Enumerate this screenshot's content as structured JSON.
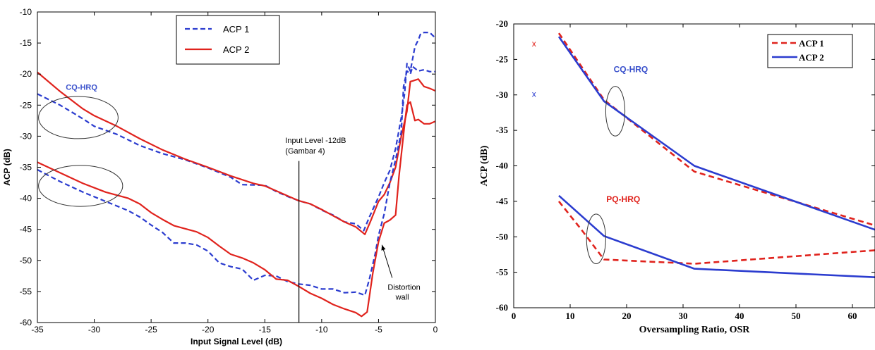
{
  "chart_data": [
    {
      "type": "line",
      "xlabel": "Input Signal Level (dB)",
      "ylabel": "ACP (dB)",
      "xlim": [
        -35,
        0
      ],
      "ylim": [
        -60,
        -10
      ],
      "xticks": [
        -35,
        -30,
        -25,
        -20,
        -15,
        -10,
        -5,
        0
      ],
      "yticks": [
        -60,
        -55,
        -50,
        -45,
        -40,
        -35,
        -30,
        -25,
        -20,
        -15,
        -10
      ],
      "grid": false,
      "legend": {
        "position": "top-center",
        "entries": [
          "ACP 1",
          "ACP 2"
        ]
      },
      "series": [
        {
          "name": "ACP 1",
          "group": "CQ-HRQ",
          "color": "#2b3ccf",
          "style": "dashed",
          "points": [
            [
              -35,
              -23.2
            ],
            [
              -33,
              -25
            ],
            [
              -31,
              -27.2
            ],
            [
              -30,
              -28.4
            ],
            [
              -28,
              -29.7
            ],
            [
              -26,
              -31.5
            ],
            [
              -24,
              -32.8
            ],
            [
              -22,
              -33.8
            ],
            [
              -20,
              -35.1
            ],
            [
              -18,
              -36.6
            ],
            [
              -17,
              -37.8
            ],
            [
              -15,
              -37.9
            ],
            [
              -14,
              -38.9
            ],
            [
              -13,
              -39.7
            ],
            [
              -12,
              -40.4
            ],
            [
              -11,
              -40.9
            ],
            [
              -10,
              -41.9
            ],
            [
              -9,
              -42.7
            ],
            [
              -8,
              -43.8
            ],
            [
              -7,
              -44.1
            ],
            [
              -6.3,
              -45.2
            ],
            [
              -5.8,
              -43
            ],
            [
              -5,
              -39.8
            ],
            [
              -4.5,
              -37.5
            ],
            [
              -4,
              -35.5
            ],
            [
              -3.5,
              -32
            ],
            [
              -3,
              -27
            ],
            [
              -2.7,
              -23
            ],
            [
              -2.5,
              -18.3
            ],
            [
              -2.2,
              -19.5
            ],
            [
              -1.8,
              -15.6
            ],
            [
              -1.5,
              -14.5
            ],
            [
              -1.3,
              -13.5
            ],
            [
              -1,
              -13.3
            ],
            [
              -0.5,
              -13.3
            ],
            [
              0,
              -14.2
            ]
          ]
        },
        {
          "name": "ACP 2",
          "group": "CQ-HRQ",
          "color": "#e0231d",
          "style": "solid",
          "points": [
            [
              -35,
              -19.7
            ],
            [
              -33,
              -22.8
            ],
            [
              -31,
              -25.6
            ],
            [
              -30,
              -26.7
            ],
            [
              -28,
              -28.4
            ],
            [
              -26,
              -30.4
            ],
            [
              -24,
              -32.2
            ],
            [
              -22,
              -33.7
            ],
            [
              -20,
              -35
            ],
            [
              -18,
              -36.4
            ],
            [
              -16,
              -37.6
            ],
            [
              -15,
              -38
            ],
            [
              -14,
              -38.8
            ],
            [
              -13,
              -39.6
            ],
            [
              -12,
              -40.4
            ],
            [
              -11,
              -40.9
            ],
            [
              -10,
              -41.8
            ],
            [
              -9,
              -42.8
            ],
            [
              -8,
              -43.8
            ],
            [
              -7,
              -44.6
            ],
            [
              -6.2,
              -45.8
            ],
            [
              -5.7,
              -43.7
            ],
            [
              -5,
              -40.5
            ],
            [
              -4.5,
              -39.4
            ],
            [
              -4,
              -37.5
            ],
            [
              -3.5,
              -35
            ],
            [
              -3,
              -30
            ],
            [
              -2.5,
              -26
            ],
            [
              -2.2,
              -21.2
            ],
            [
              -2,
              -21.1
            ],
            [
              -1.5,
              -20.8
            ],
            [
              -1,
              -22
            ],
            [
              -0.5,
              -22.3
            ],
            [
              0,
              -22.7
            ]
          ]
        },
        {
          "name": "ACP 1",
          "group": "lower",
          "color": "#2b3ccf",
          "style": "dashed",
          "points": [
            [
              -35,
              -35.4
            ],
            [
              -33,
              -37.3
            ],
            [
              -31,
              -39
            ],
            [
              -29,
              -40.5
            ],
            [
              -27,
              -42
            ],
            [
              -26,
              -43
            ],
            [
              -25,
              -44.3
            ],
            [
              -24,
              -45.5
            ],
            [
              -23,
              -47.2
            ],
            [
              -22,
              -47.2
            ],
            [
              -21,
              -47.5
            ],
            [
              -20,
              -48.5
            ],
            [
              -19,
              -50.4
            ],
            [
              -18,
              -51
            ],
            [
              -17,
              -51.4
            ],
            [
              -16,
              -53.2
            ],
            [
              -15,
              -52.4
            ],
            [
              -14,
              -52.5
            ],
            [
              -13,
              -53.4
            ],
            [
              -12,
              -53.8
            ],
            [
              -11,
              -54
            ],
            [
              -10,
              -54.6
            ],
            [
              -9,
              -54.6
            ],
            [
              -8,
              -55.2
            ],
            [
              -7,
              -55.1
            ],
            [
              -6.2,
              -55.6
            ],
            [
              -5.8,
              -53
            ],
            [
              -5.3,
              -49
            ],
            [
              -5,
              -46
            ],
            [
              -4.5,
              -42.5
            ],
            [
              -4,
              -37.5
            ],
            [
              -3.5,
              -33.8
            ],
            [
              -3,
              -29.3
            ],
            [
              -2.8,
              -22
            ],
            [
              -2.5,
              -19.5
            ],
            [
              -2.2,
              -20
            ],
            [
              -2,
              -18.8
            ],
            [
              -1.5,
              -19.5
            ],
            [
              -1,
              -19.3
            ],
            [
              -0.5,
              -19.6
            ],
            [
              0,
              -19.6
            ]
          ]
        },
        {
          "name": "ACP 2",
          "group": "lower",
          "color": "#e0231d",
          "style": "solid",
          "points": [
            [
              -35,
              -34.2
            ],
            [
              -33,
              -35.9
            ],
            [
              -31,
              -37.6
            ],
            [
              -29,
              -39
            ],
            [
              -27,
              -40
            ],
            [
              -26,
              -40.9
            ],
            [
              -25,
              -42.3
            ],
            [
              -24,
              -43.4
            ],
            [
              -23,
              -44.4
            ],
            [
              -22,
              -44.9
            ],
            [
              -21,
              -45.4
            ],
            [
              -20,
              -46.3
            ],
            [
              -19,
              -47.7
            ],
            [
              -18,
              -49
            ],
            [
              -17,
              -49.6
            ],
            [
              -16,
              -50.4
            ],
            [
              -15,
              -51.5
            ],
            [
              -14,
              -53
            ],
            [
              -13,
              -53.2
            ],
            [
              -12,
              -54.2
            ],
            [
              -11,
              -55.3
            ],
            [
              -10,
              -56.1
            ],
            [
              -9,
              -57.1
            ],
            [
              -8,
              -57.8
            ],
            [
              -7,
              -58.4
            ],
            [
              -6.5,
              -59
            ],
            [
              -6,
              -58.3
            ],
            [
              -5.5,
              -52
            ],
            [
              -5,
              -47
            ],
            [
              -4.5,
              -44
            ],
            [
              -4,
              -43.5
            ],
            [
              -3.5,
              -42.7
            ],
            [
              -3.2,
              -36.5
            ],
            [
              -3,
              -33
            ],
            [
              -2.7,
              -28
            ],
            [
              -2.5,
              -25
            ],
            [
              -2.2,
              -24.5
            ],
            [
              -1.8,
              -27.5
            ],
            [
              -1.5,
              -27.3
            ],
            [
              -1,
              -28
            ],
            [
              -0.5,
              -28
            ],
            [
              0,
              -27.6
            ]
          ]
        }
      ],
      "annotations": [
        {
          "text": "CQ-HRQ",
          "color": "#3b52cc",
          "at": [
            -32.5,
            -22.5
          ]
        },
        {
          "text": "Input Level -12dB",
          "at": [
            -13.2,
            -31.1
          ]
        },
        {
          "text": "(Gambar 4)",
          "at": [
            -13.2,
            -32.8
          ]
        },
        {
          "text": "Distortion",
          "at": [
            -4.2,
            -54.7
          ]
        },
        {
          "text": "wall",
          "at": [
            -3.5,
            -56.3
          ]
        }
      ],
      "ellipses": [
        {
          "cx": -31.4,
          "cy": -27,
          "rx": 3.5,
          "ry": 3.4
        },
        {
          "cx": -31.2,
          "cy": -38,
          "rx": 3.7,
          "ry": 3.3
        }
      ],
      "vline": -12,
      "arrow": {
        "from": [
          -3.8,
          -52.8
        ],
        "to": [
          -4.7,
          -47.5
        ]
      }
    },
    {
      "type": "line",
      "xlabel": "Oversampling Ratio, OSR",
      "ylabel": "ACP (dB)",
      "xlim": [
        0,
        64
      ],
      "ylim": [
        -60,
        -20
      ],
      "xticks": [
        0,
        10,
        20,
        30,
        40,
        50,
        60
      ],
      "yticks": [
        -60,
        -55,
        -50,
        -45,
        -40,
        -35,
        -30,
        -25,
        -20
      ],
      "grid": false,
      "legend": {
        "position": "top-right",
        "entries": [
          "ACP 1",
          "ACP 2"
        ]
      },
      "series": [
        {
          "name": "ACP 1",
          "group": "CQ-HRQ",
          "color": "#e0231d",
          "style": "dashed",
          "points": [
            [
              8,
              -21.3
            ],
            [
              16,
              -30.7
            ],
            [
              32,
              -40.8
            ],
            [
              64,
              -48.4
            ]
          ]
        },
        {
          "name": "ACP 2",
          "group": "CQ-HRQ",
          "color": "#2b3ccf",
          "style": "solid",
          "points": [
            [
              8,
              -21.8
            ],
            [
              16,
              -30.9
            ],
            [
              32,
              -40
            ],
            [
              64,
              -49
            ]
          ]
        },
        {
          "name": "ACP 1",
          "group": "PQ-HRQ",
          "color": "#e0231d",
          "style": "dashed",
          "points": [
            [
              8,
              -45
            ],
            [
              12,
              -49
            ],
            [
              16,
              -53.2
            ],
            [
              32,
              -53.8
            ],
            [
              64,
              -51.9
            ]
          ]
        },
        {
          "name": "ACP 2",
          "group": "PQ-HRQ",
          "color": "#2b3ccf",
          "style": "solid",
          "points": [
            [
              8,
              -44.2
            ],
            [
              16,
              -49.9
            ],
            [
              32,
              -54.5
            ],
            [
              64,
              -55.7
            ]
          ]
        }
      ],
      "annotations": [
        {
          "text": "CQ-HRQ",
          "color": "#3b52cc",
          "at": [
            17.7,
            -26.8
          ]
        },
        {
          "text": "PQ-HRQ",
          "color": "#e0231d",
          "at": [
            16.4,
            -45.1
          ]
        }
      ],
      "markers": [
        {
          "text": "x",
          "color": "#e0231d",
          "at": [
            3.6,
            -22.8
          ]
        },
        {
          "text": "x",
          "color": "#2b3ccf",
          "at": [
            3.6,
            -29.9
          ]
        }
      ],
      "ellipses": [
        {
          "cx": 18,
          "cy": -32.3,
          "rx": 1.7,
          "ry": 3.5
        },
        {
          "cx": 14.6,
          "cy": -50.3,
          "rx": 1.7,
          "ry": 3.5
        }
      ]
    }
  ]
}
